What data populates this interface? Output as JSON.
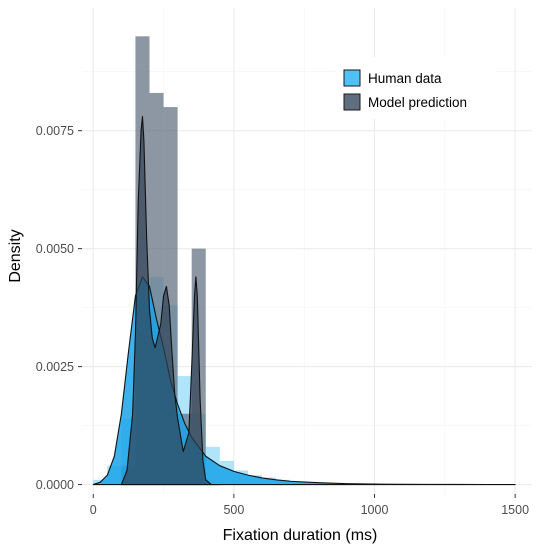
{
  "chart_data": {
    "type": "histogram+density",
    "title": "",
    "xlabel": "Fixation duration (ms)",
    "ylabel": "Density",
    "xlim": [
      -40,
      1560
    ],
    "ylim": [
      -0.0002,
      0.0101
    ],
    "x_ticks": [
      0,
      500,
      1000,
      1500
    ],
    "x_tick_labels": [
      "0",
      "500",
      "1000",
      "1500"
    ],
    "y_ticks": [
      0.0,
      0.0025,
      0.005,
      0.0075
    ],
    "y_tick_labels": [
      "0.0000",
      "0.0025",
      "0.0050",
      "0.0075"
    ],
    "grid": true,
    "legend_position": "top-right",
    "bin_width": 50,
    "series": [
      {
        "name": "Human data",
        "fill_color": "#4fc3f7",
        "density_fill_color": "#1aa3e8",
        "histogram": {
          "bin_starts": [
            0,
            50,
            100,
            150,
            200,
            250,
            300,
            350,
            400,
            450,
            500,
            550,
            600,
            650,
            700,
            750,
            800,
            850
          ],
          "values": [
            0.0001,
            0.0004,
            0.0014,
            0.0039,
            0.0044,
            0.0038,
            0.0023,
            0.0015,
            0.0008,
            0.0005,
            0.0003,
            0.0002,
            0.00015,
            0.0001,
            5e-05,
            4e-05,
            2e-05,
            1e-05
          ]
        },
        "density": {
          "x": [
            0,
            25,
            50,
            75,
            100,
            125,
            150,
            175,
            200,
            225,
            250,
            275,
            300,
            325,
            350,
            375,
            400,
            450,
            500,
            550,
            600,
            650,
            700,
            800,
            900,
            1000,
            1100,
            1200,
            1300,
            1400,
            1500
          ],
          "y": [
            0.0,
            5e-05,
            0.0002,
            0.0006,
            0.0015,
            0.0028,
            0.004,
            0.0044,
            0.0042,
            0.0035,
            0.0029,
            0.0022,
            0.0017,
            0.0013,
            0.001,
            0.0008,
            0.0006,
            0.0004,
            0.00028,
            0.0002,
            0.00014,
            0.0001,
            7e-05,
            4e-05,
            2e-05,
            1e-05,
            6e-06,
            4e-06,
            2e-06,
            1e-06,
            0.0
          ]
        }
      },
      {
        "name": "Model prediction",
        "fill_color": "#5f6f7f",
        "density_fill_color": "#2f4155",
        "histogram": {
          "bin_starts": [
            100,
            150,
            200,
            250,
            300,
            350
          ],
          "values": [
            0.0004,
            0.0095,
            0.0083,
            0.008,
            0.0015,
            0.005
          ]
        },
        "density": {
          "x": [
            100,
            120,
            140,
            150,
            160,
            170,
            175,
            180,
            190,
            200,
            210,
            220,
            240,
            250,
            260,
            270,
            280,
            290,
            300,
            320,
            340,
            350,
            360,
            365,
            370,
            380,
            390,
            400,
            420,
            450
          ],
          "y": [
            0.0,
            0.0003,
            0.0015,
            0.0032,
            0.006,
            0.0075,
            0.0078,
            0.0073,
            0.0052,
            0.0037,
            0.0031,
            0.0029,
            0.0034,
            0.004,
            0.0042,
            0.0038,
            0.0028,
            0.0019,
            0.0014,
            0.0007,
            0.0011,
            0.0025,
            0.004,
            0.0044,
            0.004,
            0.0018,
            0.0005,
            0.0001,
            0.0,
            0.0
          ]
        }
      }
    ]
  }
}
